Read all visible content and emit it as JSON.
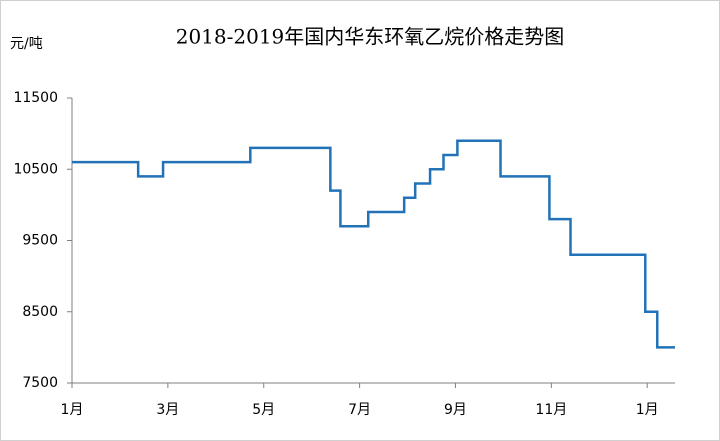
{
  "chart_data": {
    "type": "line",
    "title": "2018-2019年国内华东环氧乙烷价格走势图",
    "y_label": "元/吨",
    "x": [
      0,
      1.38,
      1.38,
      1.9,
      1.9,
      3.72,
      3.72,
      5.39,
      5.39,
      5.6,
      5.6,
      6.18,
      6.18,
      6.93,
      6.93,
      7.16,
      7.16,
      7.47,
      7.47,
      7.75,
      7.75,
      8.04,
      8.04,
      8.94,
      8.94,
      9.96,
      9.96,
      10.4,
      10.4,
      11.96,
      11.96,
      12.21,
      12.21,
      12.58
    ],
    "series": [
      {
        "color": "#2272b8",
        "values": [
          10600,
          10600,
          10400,
          10400,
          10600,
          10600,
          10800,
          10800,
          10200,
          10200,
          9700,
          9700,
          9900,
          9900,
          10100,
          10100,
          10300,
          10300,
          10500,
          10500,
          10700,
          10700,
          10900,
          10900,
          10400,
          10400,
          9800,
          9800,
          9300,
          9300,
          8500,
          8500,
          8000,
          8000
        ]
      }
    ],
    "xlim": [
      0,
      12.58
    ],
    "xticks": [
      {
        "value": 0,
        "label": "1月"
      },
      {
        "value": 2,
        "label": "3月"
      },
      {
        "value": 4,
        "label": "5月"
      },
      {
        "value": 6,
        "label": "7月"
      },
      {
        "value": 8,
        "label": "9月"
      },
      {
        "value": 10,
        "label": "11月"
      },
      {
        "value": 12,
        "label": "1月"
      }
    ],
    "ylim": [
      7500,
      11500
    ],
    "yticks": [
      11500,
      10500,
      9500,
      8500,
      7500
    ],
    "grid": false
  }
}
